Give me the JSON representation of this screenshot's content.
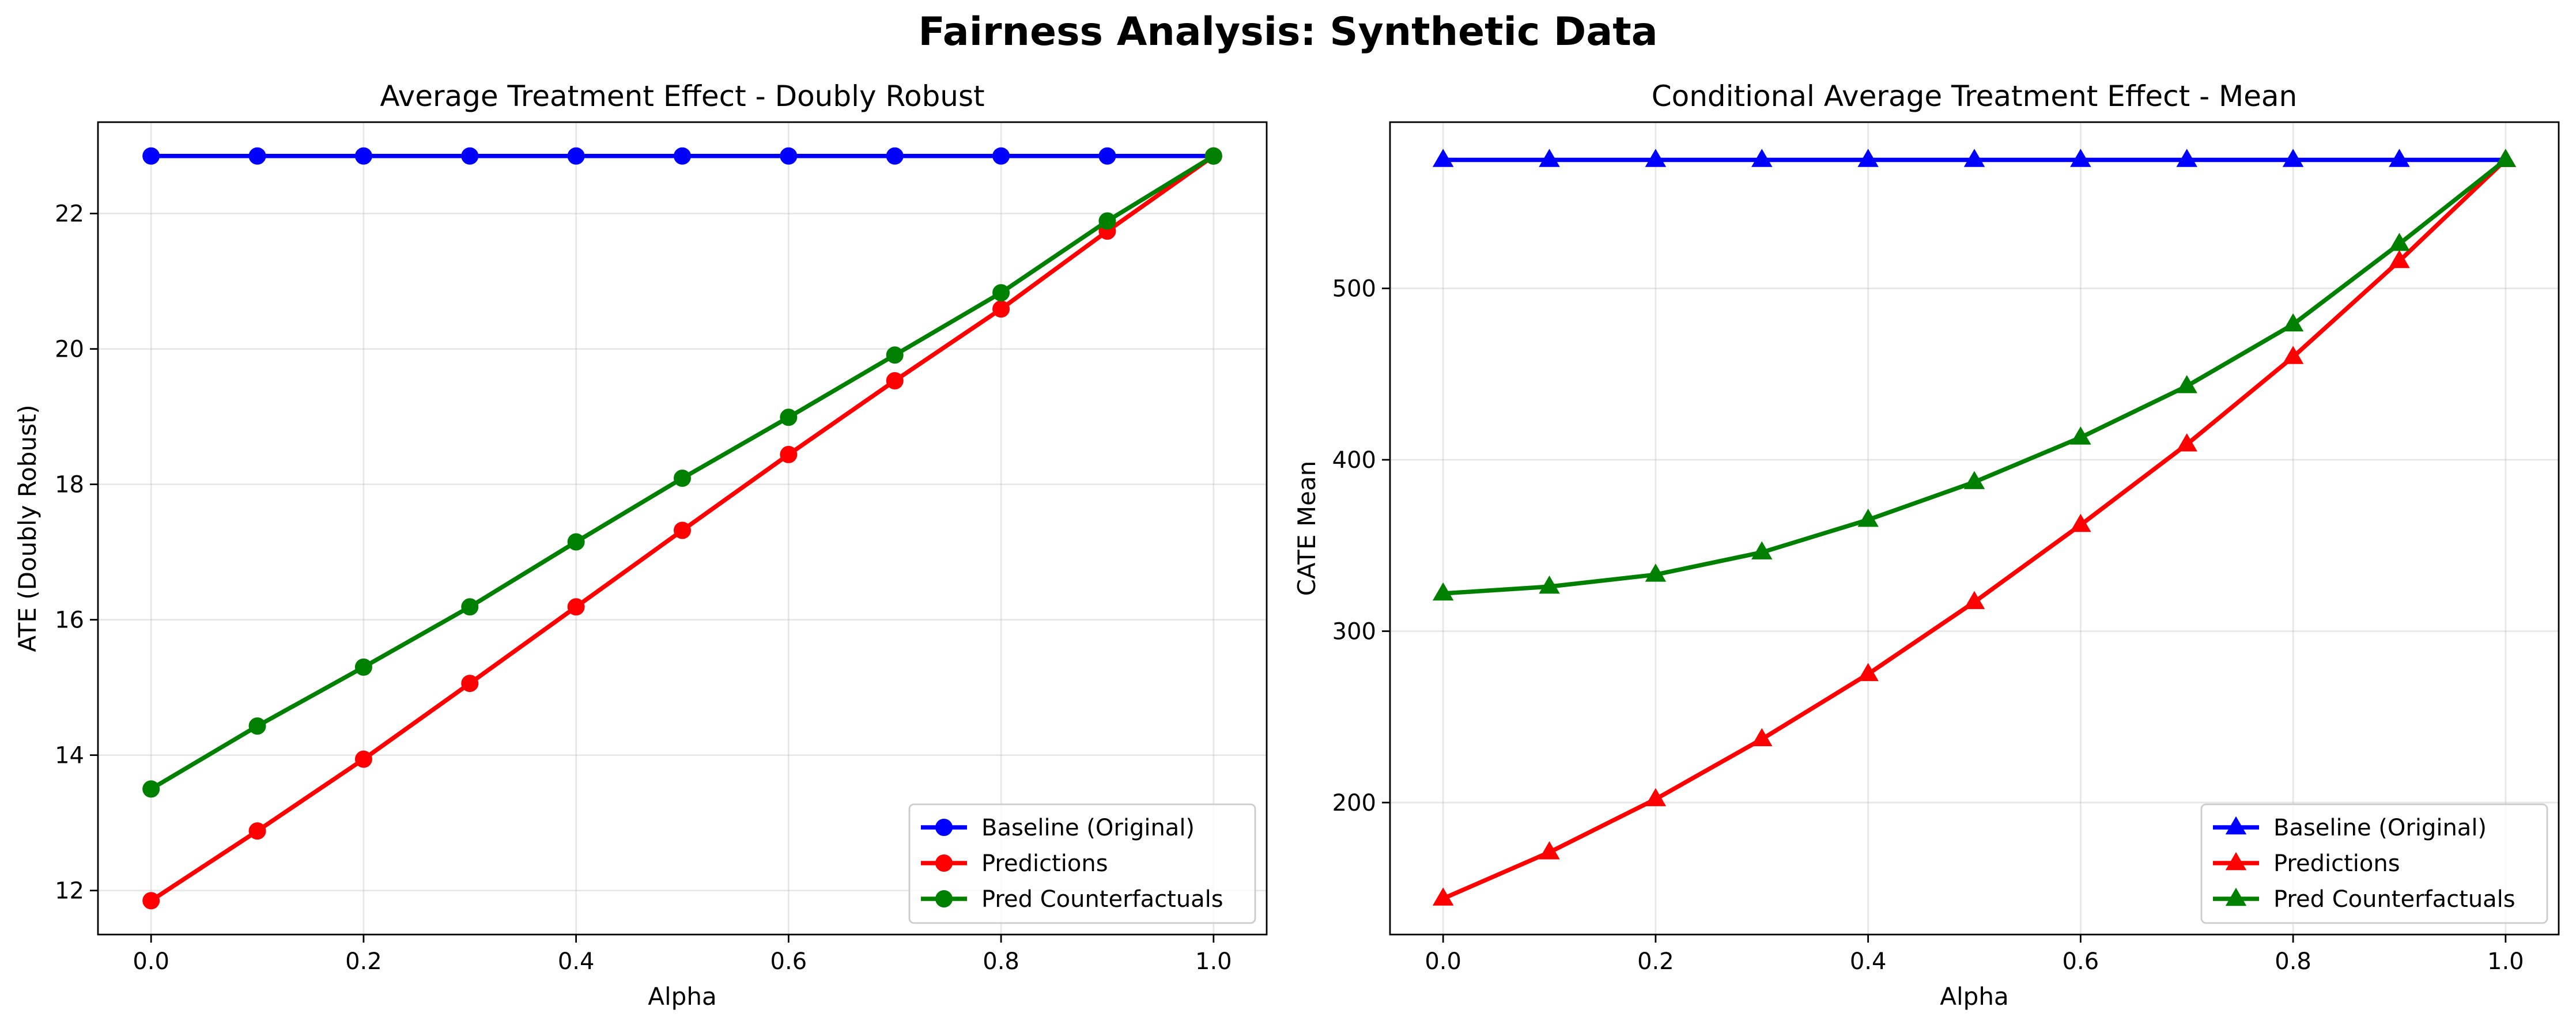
{
  "suptitle": "Fairness Analysis: Synthetic Data",
  "chart_data": [
    {
      "type": "line",
      "title": "Average Treatment Effect - Doubly Robust",
      "xlabel": "Alpha",
      "ylabel": "ATE (Doubly Robust)",
      "xlim": [
        -0.05,
        1.05
      ],
      "ylim": [
        11.35,
        23.35
      ],
      "xticks": [
        0.0,
        0.2,
        0.4,
        0.6,
        0.8,
        1.0
      ],
      "xtick_labels": [
        "0.0",
        "0.2",
        "0.4",
        "0.6",
        "0.8",
        "1.0"
      ],
      "yticks": [
        12,
        14,
        16,
        18,
        20,
        22
      ],
      "ytick_labels": [
        "12",
        "14",
        "16",
        "18",
        "20",
        "22"
      ],
      "grid": true,
      "legend_position": "lower right",
      "marker": "circle",
      "x": [
        0.0,
        0.1,
        0.2,
        0.3,
        0.4,
        0.5,
        0.6,
        0.7,
        0.8,
        0.9,
        1.0
      ],
      "series": [
        {
          "name": "Baseline (Original)",
          "color": "#0000ff",
          "values": [
            22.85,
            22.85,
            22.85,
            22.85,
            22.85,
            22.85,
            22.85,
            22.85,
            22.85,
            22.85,
            22.85
          ]
        },
        {
          "name": "Predictions",
          "color": "#ff0000",
          "values": [
            11.85,
            12.88,
            13.94,
            15.06,
            16.19,
            17.32,
            18.44,
            19.53,
            20.59,
            21.74,
            22.85
          ]
        },
        {
          "name": "Pred Counterfactuals",
          "color": "#008000",
          "values": [
            13.5,
            14.43,
            15.3,
            16.19,
            17.15,
            18.09,
            18.99,
            19.91,
            20.83,
            21.89,
            22.85
          ]
        }
      ]
    },
    {
      "type": "line",
      "title": "Conditional Average Treatment Effect - Mean",
      "xlabel": "Alpha",
      "ylabel": "CATE Mean",
      "xlim": [
        -0.05,
        1.05
      ],
      "ylim": [
        123,
        597
      ],
      "xticks": [
        0.0,
        0.2,
        0.4,
        0.6,
        0.8,
        1.0
      ],
      "xtick_labels": [
        "0.0",
        "0.2",
        "0.4",
        "0.6",
        "0.8",
        "1.0"
      ],
      "yticks": [
        200,
        300,
        400,
        500
      ],
      "ytick_labels": [
        "200",
        "300",
        "400",
        "500"
      ],
      "grid": true,
      "legend_position": "lower right",
      "marker": "triangle",
      "x": [
        0.0,
        0.1,
        0.2,
        0.3,
        0.4,
        0.5,
        0.6,
        0.7,
        0.8,
        0.9,
        1.0
      ],
      "series": [
        {
          "name": "Baseline (Original)",
          "color": "#0000ff",
          "values": [
            575,
            575,
            575,
            575,
            575,
            575,
            575,
            575,
            575,
            575,
            575
          ]
        },
        {
          "name": "Predictions",
          "color": "#ff0000",
          "values": [
            144,
            171,
            202,
            237,
            275,
            317,
            362,
            409,
            460,
            516,
            575
          ]
        },
        {
          "name": "Pred Counterfactuals",
          "color": "#008000",
          "values": [
            322,
            326,
            333,
            346,
            365,
            387,
            413,
            443,
            479,
            526,
            575
          ]
        }
      ]
    }
  ]
}
